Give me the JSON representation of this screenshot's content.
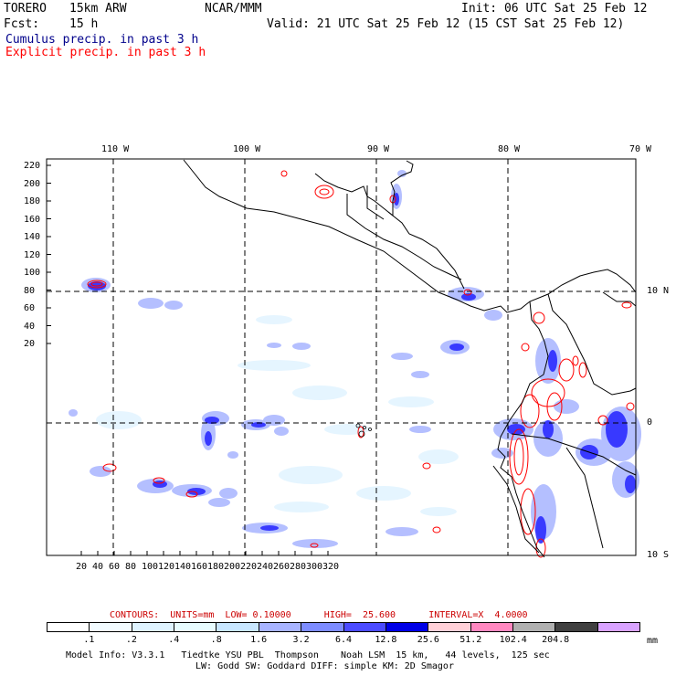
{
  "header": {
    "model": "TORERO",
    "resolution": "15km ARW",
    "org": "NCAR/MMM",
    "init": "Init: 06 UTC Sat 25 Feb 12",
    "fcst_label": "Fcst:",
    "fcst_value": "15 h",
    "valid": "Valid: 21 UTC Sat 25 Feb 12 (15 CST Sat 25 Feb 12)",
    "legend_cumulus": "Cumulus precip. in past 3 h",
    "legend_explicit": "Explicit precip. in past 3 h"
  },
  "colors": {
    "cumulus_text": "#00008b",
    "explicit_text": "#ff0000",
    "grid_dash": "#000000"
  },
  "map": {
    "lon_labels": [
      "110 W",
      "100 W",
      "90 W",
      "80 W",
      "70 W"
    ],
    "lat_labels": [
      "10 N",
      "0",
      "10 S"
    ],
    "y_ticks": [
      "220",
      "200",
      "180",
      "160",
      "140",
      "120",
      "100",
      "80",
      "60",
      "40",
      "20"
    ],
    "x_ticks": [
      "20",
      "40",
      "60",
      "80",
      "100",
      "120",
      "140",
      "160",
      "180",
      "200",
      "220",
      "240",
      "260",
      "280",
      "300",
      "320"
    ]
  },
  "contours": {
    "text": "CONTOURS:  UNITS=mm  LOW= 0.10000      HIGH=  25.600      INTERVAL=X  4.0000"
  },
  "colorbar": {
    "colors": [
      "#ffffff",
      "#f2fbff",
      "#dff3ff",
      "#e8fcff",
      "#c8e6ff",
      "#a8b4ff",
      "#7d8cff",
      "#4b4bff",
      "#0000e6",
      "#ffd0d8",
      "#ff88c0",
      "#b0b0b0",
      "#404040",
      "#d9a3ff"
    ],
    "labels": [
      ".1",
      ".2",
      ".4",
      ".8",
      "1.6",
      "3.2",
      "6.4",
      "12.8",
      "25.6",
      "51.2",
      "102.4",
      "204.8"
    ],
    "unit": "mm"
  },
  "footer": {
    "line1": "Model Info: V3.3.1   Tiedtke YSU PBL  Thompson    Noah LSM  15 km,   44 levels,  125 sec",
    "line2": "LW: Godd SW: Goddard DIFF: simple KM: 2D Smagor"
  }
}
